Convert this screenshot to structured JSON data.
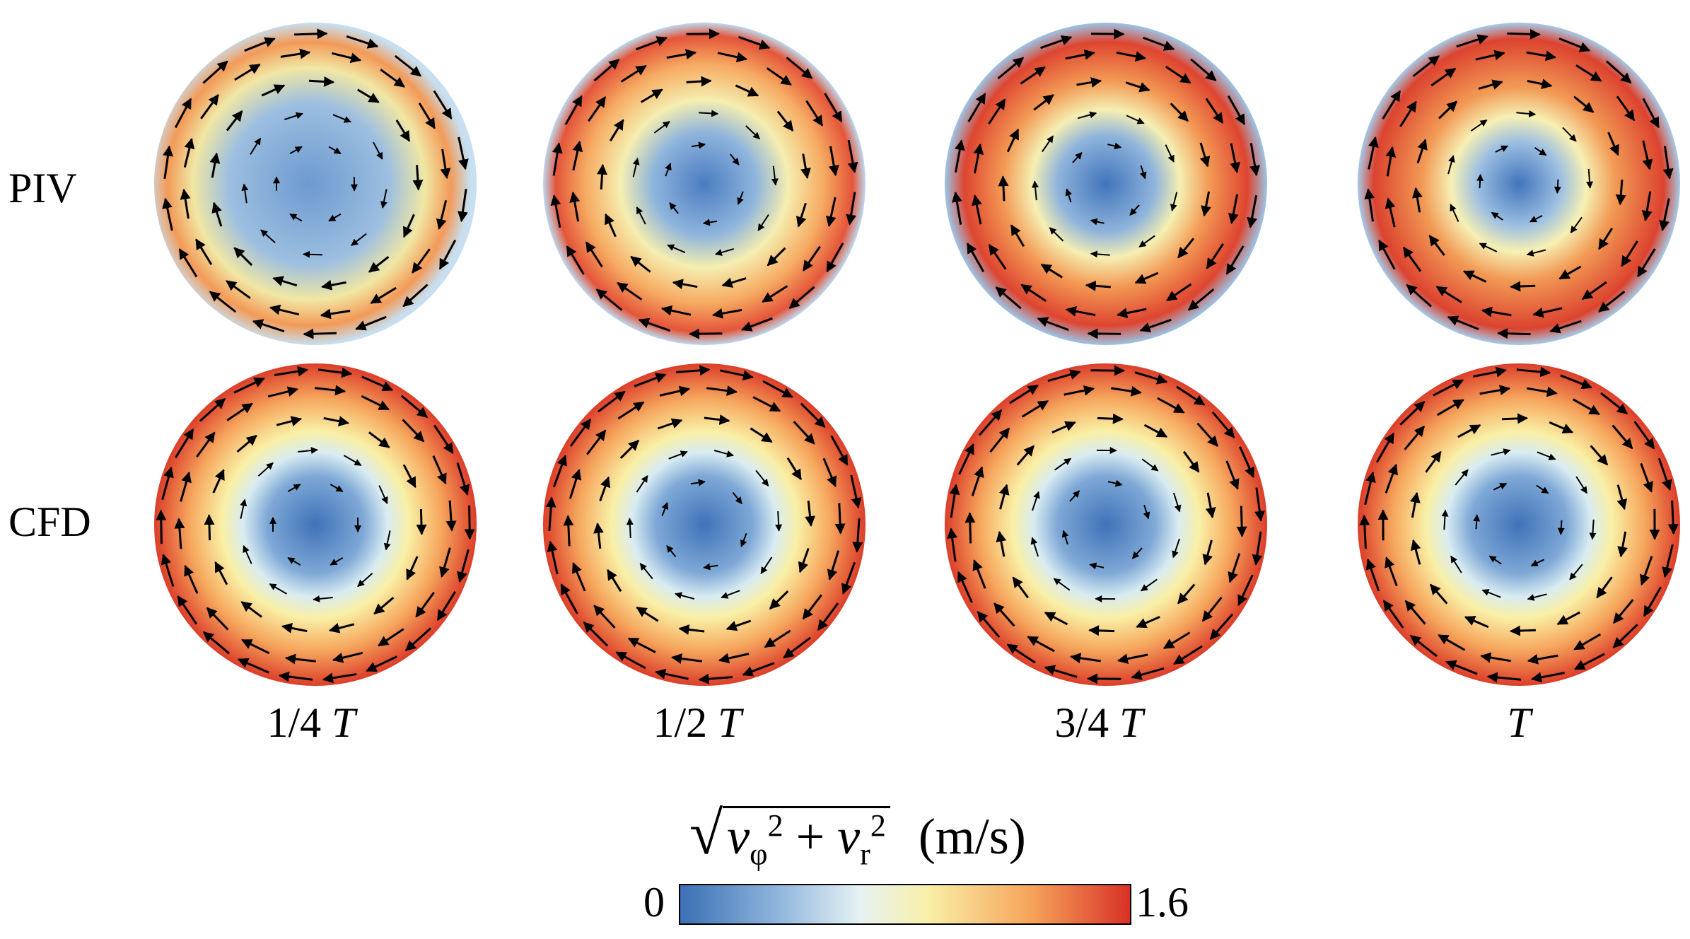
{
  "rows": [
    {
      "label": "PIV",
      "kind": "piv"
    },
    {
      "label": "CFD",
      "kind": "cfd"
    }
  ],
  "columns": [
    {
      "fraction": "1/4",
      "symbol": "T"
    },
    {
      "fraction": "1/2",
      "symbol": "T"
    },
    {
      "fraction": "3/4",
      "symbol": "T"
    },
    {
      "fraction": "",
      "symbol": "T"
    }
  ],
  "colorbar": {
    "min_label": "0",
    "max_label": "1.6",
    "unit": "(m/s)",
    "quantity_symbol_phi": "φ",
    "quantity_symbol_r": "r",
    "colors": [
      "#3a6fb4",
      "#8fb6dc",
      "#e6f2f4",
      "#f9f0a8",
      "#f6a35a",
      "#d83026"
    ]
  }
}
